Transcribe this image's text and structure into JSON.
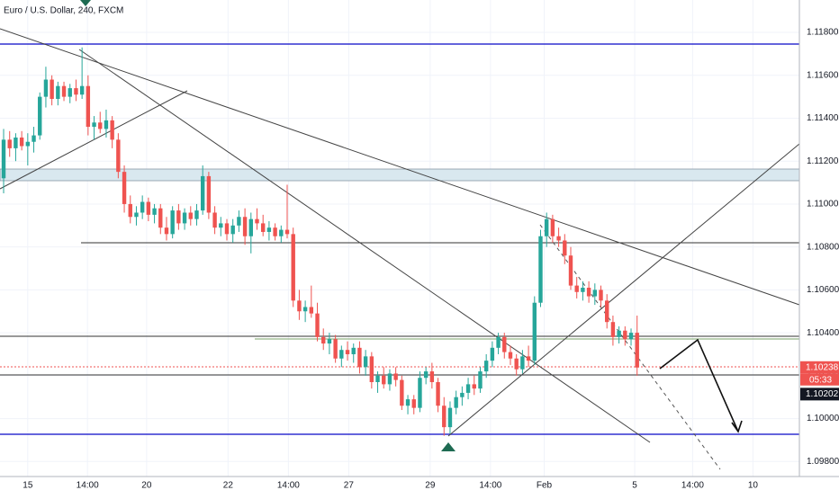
{
  "chart_data": {
    "type": "candlestick",
    "title": "Euro / U.S. Dollar, 240, FXCM",
    "candles": [
      [
        1.1112,
        1.1135,
        1.1105,
        1.113
      ],
      [
        1.113,
        1.1134,
        1.1122,
        1.1126
      ],
      [
        1.1126,
        1.1133,
        1.112,
        1.1131
      ],
      [
        1.1131,
        1.1134,
        1.1125,
        1.1127
      ],
      [
        1.1127,
        1.1133,
        1.1118,
        1.1129
      ],
      [
        1.1129,
        1.1136,
        1.1124,
        1.1132
      ],
      [
        1.1132,
        1.1152,
        1.113,
        1.115
      ],
      [
        1.115,
        1.1164,
        1.1145,
        1.1158
      ],
      [
        1.1158,
        1.116,
        1.1146,
        1.1149
      ],
      [
        1.1149,
        1.1157,
        1.1146,
        1.1155
      ],
      [
        1.1155,
        1.1157,
        1.1148,
        1.115
      ],
      [
        1.115,
        1.1156,
        1.1147,
        1.1154
      ],
      [
        1.1154,
        1.1158,
        1.1148,
        1.1151
      ],
      [
        1.1151,
        1.1173,
        1.1149,
        1.1155
      ],
      [
        1.1155,
        1.116,
        1.1132,
        1.1136
      ],
      [
        1.1136,
        1.1141,
        1.113,
        1.1138
      ],
      [
        1.1138,
        1.1143,
        1.1133,
        1.1135
      ],
      [
        1.1135,
        1.1144,
        1.1131,
        1.1139
      ],
      [
        1.1139,
        1.1141,
        1.1126,
        1.113
      ],
      [
        1.113,
        1.1133,
        1.1112,
        1.1115
      ],
      [
        1.1115,
        1.1118,
        1.1096,
        1.11
      ],
      [
        1.11,
        1.1104,
        1.1091,
        1.1094
      ],
      [
        1.1094,
        1.1099,
        1.109,
        1.1096
      ],
      [
        1.1096,
        1.1104,
        1.1093,
        1.1101
      ],
      [
        1.1101,
        1.1103,
        1.1092,
        1.1095
      ],
      [
        1.1095,
        1.11,
        1.1091,
        1.1098
      ],
      [
        1.1098,
        1.11,
        1.1086,
        1.1089
      ],
      [
        1.1089,
        1.1094,
        1.1083,
        1.1086
      ],
      [
        1.1086,
        1.1099,
        1.1084,
        1.1097
      ],
      [
        1.1097,
        1.11,
        1.1088,
        1.1091
      ],
      [
        1.1091,
        1.1098,
        1.1088,
        1.1096
      ],
      [
        1.1096,
        1.1099,
        1.109,
        1.1093
      ],
      [
        1.1093,
        1.11,
        1.109,
        1.1097
      ],
      [
        1.1097,
        1.1118,
        1.1095,
        1.1113
      ],
      [
        1.1113,
        1.1115,
        1.1093,
        1.1096
      ],
      [
        1.1096,
        1.1099,
        1.1086,
        1.1089
      ],
      [
        1.1089,
        1.1094,
        1.1085,
        1.1091
      ],
      [
        1.1091,
        1.1093,
        1.1083,
        1.1086
      ],
      [
        1.1086,
        1.1093,
        1.1082,
        1.109
      ],
      [
        1.109,
        1.1097,
        1.1087,
        1.1094
      ],
      [
        1.1094,
        1.1098,
        1.1081,
        1.1085
      ],
      [
        1.1085,
        1.1096,
        1.1077,
        1.1093
      ],
      [
        1.1093,
        1.1098,
        1.1088,
        1.1091
      ],
      [
        1.1091,
        1.1095,
        1.1085,
        1.1087
      ],
      [
        1.1087,
        1.1092,
        1.1083,
        1.1089
      ],
      [
        1.1089,
        1.1091,
        1.1083,
        1.1085
      ],
      [
        1.1085,
        1.109,
        1.1082,
        1.1088
      ],
      [
        1.1088,
        1.1109,
        1.1084,
        1.1086
      ],
      [
        1.1086,
        1.1089,
        1.1052,
        1.1055
      ],
      [
        1.1055,
        1.106,
        1.1046,
        1.105
      ],
      [
        1.105,
        1.1055,
        1.1045,
        1.1052
      ],
      [
        1.1052,
        1.1062,
        1.1047,
        1.1049
      ],
      [
        1.1049,
        1.1054,
        1.1036,
        1.1038
      ],
      [
        1.1038,
        1.1042,
        1.1032,
        1.1035
      ],
      [
        1.1035,
        1.104,
        1.103,
        1.1037
      ],
      [
        1.1037,
        1.1039,
        1.1026,
        1.1028
      ],
      [
        1.1028,
        1.1034,
        1.1024,
        1.1032
      ],
      [
        1.1032,
        1.1036,
        1.1027,
        1.103
      ],
      [
        1.103,
        1.1035,
        1.1026,
        1.1033
      ],
      [
        1.1033,
        1.1036,
        1.1021,
        1.1024
      ],
      [
        1.1024,
        1.1032,
        1.102,
        1.1029
      ],
      [
        1.1029,
        1.1031,
        1.1014,
        1.1017
      ],
      [
        1.1017,
        1.1022,
        1.1012,
        1.102
      ],
      [
        1.102,
        1.1024,
        1.1014,
        1.1016
      ],
      [
        1.1016,
        1.1023,
        1.1013,
        1.1021
      ],
      [
        1.1021,
        1.1024,
        1.1015,
        1.1018
      ],
      [
        1.1018,
        1.102,
        1.1004,
        1.1006
      ],
      [
        1.1006,
        1.1011,
        1.1002,
        1.1009
      ],
      [
        1.1009,
        1.1011,
        1.1002,
        1.1005
      ],
      [
        1.1005,
        1.1022,
        1.1003,
        1.1019
      ],
      [
        1.1019,
        1.1024,
        1.1016,
        1.1022
      ],
      [
        1.1022,
        1.1026,
        1.1014,
        1.1017
      ],
      [
        1.1017,
        1.1019,
        1.1003,
        1.1006
      ],
      [
        1.1006,
        1.101,
        1.0992,
        1.0996
      ],
      [
        1.0996,
        1.1008,
        1.0993,
        1.1005
      ],
      [
        1.1005,
        1.1013,
        1.1002,
        1.101
      ],
      [
        1.101,
        1.1015,
        1.1006,
        1.1012
      ],
      [
        1.1012,
        1.1019,
        1.1009,
        1.1016
      ],
      [
        1.1016,
        1.102,
        1.1011,
        1.1014
      ],
      [
        1.1014,
        1.1024,
        1.1012,
        1.1022
      ],
      [
        1.1022,
        1.103,
        1.1019,
        1.1027
      ],
      [
        1.1027,
        1.1036,
        1.1024,
        1.1033
      ],
      [
        1.1033,
        1.104,
        1.103,
        1.1038
      ],
      [
        1.1038,
        1.104,
        1.1028,
        1.1031
      ],
      [
        1.1031,
        1.1034,
        1.1025,
        1.1028
      ],
      [
        1.1028,
        1.103,
        1.102,
        1.1023
      ],
      [
        1.1023,
        1.1032,
        1.1021,
        1.1029
      ],
      [
        1.1029,
        1.1034,
        1.1024,
        1.1027
      ],
      [
        1.1027,
        1.1057,
        1.1025,
        1.1054
      ],
      [
        1.1054,
        1.1088,
        1.1052,
        1.1085
      ],
      [
        1.1085,
        1.1096,
        1.108,
        1.1093
      ],
      [
        1.1093,
        1.1095,
        1.1082,
        1.1085
      ],
      [
        1.1085,
        1.1089,
        1.108,
        1.1083
      ],
      [
        1.1083,
        1.1086,
        1.1072,
        1.1076
      ],
      [
        1.1076,
        1.108,
        1.106,
        1.1062
      ],
      [
        1.1062,
        1.1066,
        1.1056,
        1.1059
      ],
      [
        1.1059,
        1.1064,
        1.1055,
        1.1061
      ],
      [
        1.1061,
        1.1064,
        1.1054,
        1.1057
      ],
      [
        1.1057,
        1.1063,
        1.1053,
        1.106
      ],
      [
        1.106,
        1.1062,
        1.1052,
        1.1055
      ],
      [
        1.1055,
        1.1058,
        1.1042,
        1.1045
      ],
      [
        1.1045,
        1.1048,
        1.1034,
        1.1038
      ],
      [
        1.1038,
        1.1043,
        1.1035,
        1.1041
      ],
      [
        1.1041,
        1.1043,
        1.1034,
        1.1037
      ],
      [
        1.1037,
        1.1042,
        1.1034,
        1.104
      ],
      [
        1.104,
        1.1048,
        1.102,
        1.10238
      ]
    ],
    "up_color": "#26a69a",
    "down_color": "#ef5350",
    "xlim": [
      -0.6,
      131.9
    ],
    "xticks": [
      {
        "value": 4,
        "label": "15"
      },
      {
        "value": 13.9,
        "label": "14:00"
      },
      {
        "value": 23.7,
        "label": "20"
      },
      {
        "value": 37.2,
        "label": "22"
      },
      {
        "value": 47.2,
        "label": "14:00"
      },
      {
        "value": 57.2,
        "label": "27"
      },
      {
        "value": 70.7,
        "label": "29"
      },
      {
        "value": 80.7,
        "label": "14:00"
      },
      {
        "value": 89.6,
        "label": "Feb"
      },
      {
        "value": 104.6,
        "label": "5"
      },
      {
        "value": 114.2,
        "label": "14:00"
      },
      {
        "value": 124.2,
        "label": "10"
      }
    ],
    "ylim": [
      1.0973,
      1.11951
    ],
    "yticks": [
      {
        "value": 1.098,
        "label": "1.09800"
      },
      {
        "value": 1.1,
        "label": "1.10000"
      },
      {
        "value": 1.102,
        "label": "1.10200"
      },
      {
        "value": 1.104,
        "label": "1.10400"
      },
      {
        "value": 1.106,
        "label": "1.10600"
      },
      {
        "value": 1.108,
        "label": "1.10800"
      },
      {
        "value": 1.11,
        "label": "1.11000"
      },
      {
        "value": 1.112,
        "label": "1.11200"
      },
      {
        "value": 1.114,
        "label": "1.11400"
      },
      {
        "value": 1.116,
        "label": "1.11600"
      },
      {
        "value": 1.118,
        "label": "1.11800"
      }
    ],
    "grid": true,
    "price_labels": [
      {
        "value": 1.10238,
        "label": "1.10238",
        "color": "#ef5350"
      },
      {
        "value": 1.10202,
        "label": "1.10202",
        "color": "#131722"
      }
    ],
    "countdown": "05:33"
  }
}
